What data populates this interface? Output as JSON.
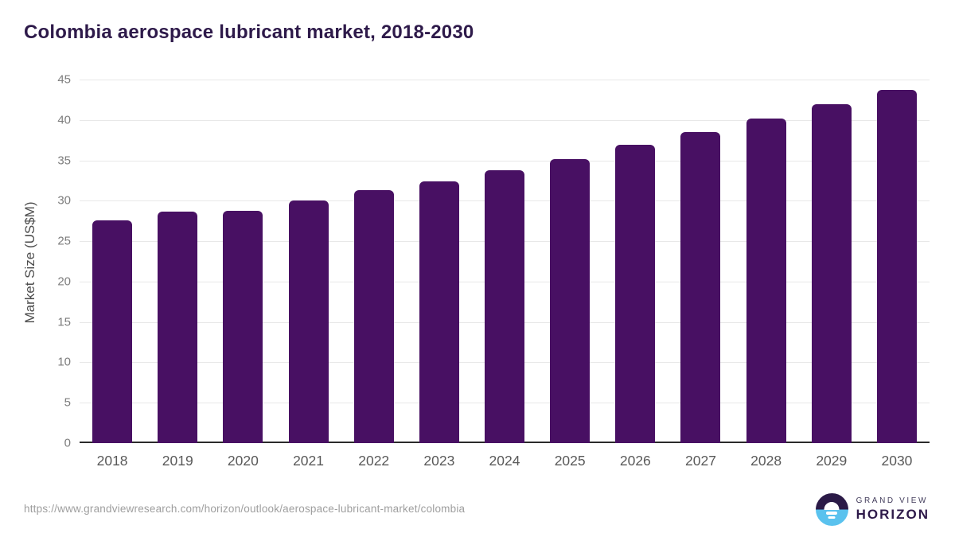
{
  "title": "Colombia aerospace lubricant market, 2018-2030",
  "chart_data": {
    "type": "bar",
    "title": "Colombia aerospace lubricant market, 2018-2030",
    "categories": [
      "2018",
      "2019",
      "2020",
      "2021",
      "2022",
      "2023",
      "2024",
      "2025",
      "2026",
      "2027",
      "2028",
      "2029",
      "2030"
    ],
    "values": [
      27.6,
      28.7,
      28.8,
      30.0,
      31.3,
      32.4,
      33.8,
      35.2,
      36.9,
      38.5,
      40.2,
      41.9,
      43.7
    ],
    "xlabel": "",
    "ylabel": "Market Size (US$M)",
    "ylim": [
      0,
      45
    ],
    "yticks": [
      0,
      5,
      10,
      15,
      20,
      25,
      30,
      35,
      40,
      45
    ],
    "grid": true,
    "legend": false,
    "bar_color": "#481063"
  },
  "footer": {
    "source_url": "https://www.grandviewresearch.com/horizon/outlook/aerospace-lubricant-market/colombia",
    "logo": {
      "line1": "GRAND VIEW",
      "line2": "HORIZON"
    }
  },
  "colors": {
    "title_text": "#2e1a4a",
    "bar": "#481063",
    "gridline": "#e8e8e8",
    "axis_line": "#2b2b2b",
    "y_tick_text": "#7d7d7d",
    "x_tick_text": "#595959",
    "url_text": "#9e9e9e",
    "logo_dark": "#2b1a47",
    "logo_blue": "#5ac2ee"
  }
}
